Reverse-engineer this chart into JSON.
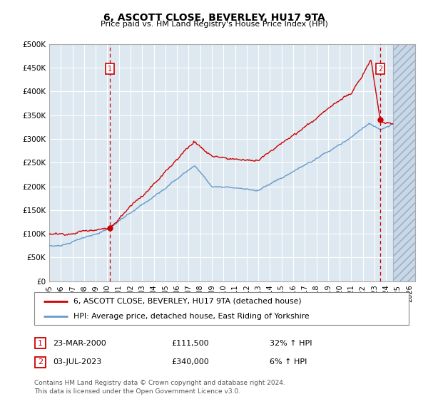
{
  "title": "6, ASCOTT CLOSE, BEVERLEY, HU17 9TA",
  "subtitle": "Price paid vs. HM Land Registry's House Price Index (HPI)",
  "ylim": [
    0,
    500000
  ],
  "yticks": [
    0,
    50000,
    100000,
    150000,
    200000,
    250000,
    300000,
    350000,
    400000,
    450000,
    500000
  ],
  "ytick_labels": [
    "£0",
    "£50K",
    "£100K",
    "£150K",
    "£200K",
    "£250K",
    "£300K",
    "£350K",
    "£400K",
    "£450K",
    "£500K"
  ],
  "xlim_start": 1995.0,
  "xlim_end": 2026.5,
  "hatch_start": 2024.58,
  "purchase1_x": 2000.22,
  "purchase1_y": 111500,
  "purchase2_x": 2023.5,
  "purchase2_y": 340000,
  "purchase1_label": "1",
  "purchase2_label": "2",
  "line_color_red": "#cc0000",
  "line_color_blue": "#6699cc",
  "background_color": "#dde8f0",
  "grid_color": "#ffffff",
  "legend_line1": "6, ASCOTT CLOSE, BEVERLEY, HU17 9TA (detached house)",
  "legend_line2": "HPI: Average price, detached house, East Riding of Yorkshire",
  "table_row1_num": "1",
  "table_row1_date": "23-MAR-2000",
  "table_row1_price": "£111,500",
  "table_row1_hpi": "32% ↑ HPI",
  "table_row2_num": "2",
  "table_row2_date": "03-JUL-2023",
  "table_row2_price": "£340,000",
  "table_row2_hpi": "6% ↑ HPI",
  "footer": "Contains HM Land Registry data © Crown copyright and database right 2024.\nThis data is licensed under the Open Government Licence v3.0.",
  "xticks": [
    1995,
    1996,
    1997,
    1998,
    1999,
    2000,
    2001,
    2002,
    2003,
    2004,
    2005,
    2006,
    2007,
    2008,
    2009,
    2010,
    2011,
    2012,
    2013,
    2014,
    2015,
    2016,
    2017,
    2018,
    2019,
    2020,
    2021,
    2022,
    2023,
    2024,
    2025,
    2026
  ]
}
